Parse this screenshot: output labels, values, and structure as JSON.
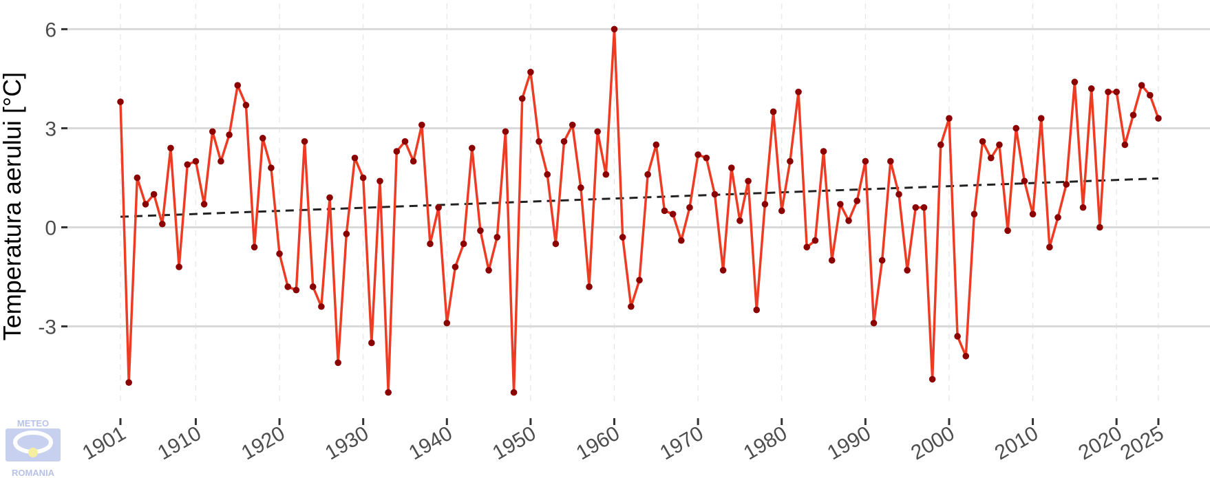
{
  "chart_data": {
    "type": "line",
    "ylabel": "Temperatura aerului [°C]",
    "xlabel": "",
    "title": "",
    "x": [
      1901,
      1902,
      1903,
      1904,
      1905,
      1906,
      1907,
      1908,
      1909,
      1910,
      1911,
      1912,
      1913,
      1914,
      1915,
      1916,
      1917,
      1918,
      1919,
      1920,
      1921,
      1922,
      1923,
      1924,
      1925,
      1926,
      1927,
      1928,
      1929,
      1930,
      1931,
      1932,
      1933,
      1934,
      1935,
      1936,
      1937,
      1938,
      1939,
      1940,
      1941,
      1942,
      1943,
      1944,
      1945,
      1946,
      1947,
      1948,
      1949,
      1950,
      1951,
      1952,
      1953,
      1954,
      1955,
      1956,
      1957,
      1958,
      1959,
      1960,
      1961,
      1962,
      1963,
      1964,
      1965,
      1966,
      1967,
      1968,
      1969,
      1970,
      1971,
      1972,
      1973,
      1974,
      1975,
      1976,
      1977,
      1978,
      1979,
      1980,
      1981,
      1982,
      1983,
      1984,
      1985,
      1986,
      1987,
      1988,
      1989,
      1990,
      1991,
      1992,
      1993,
      1994,
      1995,
      1996,
      1997,
      1998,
      1999,
      2000,
      2001,
      2002,
      2003,
      2004,
      2005,
      2006,
      2007,
      2008,
      2009,
      2010,
      2011,
      2012,
      2013,
      2014,
      2015,
      2016,
      2017,
      2018,
      2019,
      2020,
      2021,
      2022,
      2023,
      2024,
      2025
    ],
    "values": [
      3.8,
      -4.7,
      1.5,
      0.7,
      1.0,
      0.1,
      2.4,
      -1.2,
      1.9,
      2.0,
      0.7,
      2.9,
      2.0,
      2.8,
      4.3,
      3.7,
      -0.6,
      2.7,
      1.8,
      -0.8,
      -1.8,
      -1.9,
      2.6,
      -1.8,
      -2.4,
      0.9,
      -4.1,
      -0.2,
      2.1,
      1.5,
      -3.5,
      1.4,
      -5.0,
      2.3,
      2.6,
      2.0,
      3.1,
      -0.5,
      0.6,
      -2.9,
      -1.2,
      -0.5,
      2.4,
      -0.1,
      -1.3,
      -0.3,
      2.9,
      -5.0,
      3.9,
      4.7,
      2.6,
      1.6,
      -0.5,
      2.6,
      3.1,
      1.2,
      -1.8,
      2.9,
      1.6,
      6.0,
      -0.3,
      -2.4,
      -1.6,
      1.6,
      2.5,
      0.5,
      0.4,
      -0.4,
      0.6,
      2.2,
      2.1,
      1.0,
      -1.3,
      1.8,
      0.2,
      1.4,
      -2.5,
      0.7,
      3.5,
      0.5,
      2.0,
      4.1,
      -0.6,
      -0.4,
      2.3,
      -1.0,
      0.7,
      0.2,
      0.8,
      2.0,
      -2.9,
      -1.0,
      2.0,
      1.0,
      -1.3,
      0.6,
      0.6,
      -4.6,
      2.5,
      3.3,
      -3.3,
      -3.9,
      0.4,
      2.6,
      2.1,
      2.5,
      -0.1,
      3.0,
      1.4,
      0.4,
      3.3,
      -0.6,
      0.3,
      1.3,
      4.4,
      0.6,
      4.2,
      0.0,
      4.1,
      4.1,
      2.5,
      3.4,
      4.3,
      4.0,
      3.3
    ],
    "trend": {
      "start": [
        1901,
        0.32
      ],
      "end": [
        2025,
        1.48
      ]
    },
    "xticks": [
      "1901",
      "1910",
      "1920",
      "1930",
      "1940",
      "1950",
      "1960",
      "1970",
      "1980",
      "1990",
      "2000",
      "2010",
      "2020",
      "2025"
    ],
    "yticks": [
      "6",
      "3",
      "0",
      "-3"
    ],
    "ylim": [
      -5.3,
      6.3
    ],
    "xlim": [
      1901,
      2025
    ],
    "grid": true,
    "legend": "none",
    "colors": {
      "line": "#ee3b24",
      "point": "#8b0000",
      "trend": "#222222",
      "grid_major": "#d9d9d9",
      "grid_minor": "#e6e6e6"
    }
  },
  "logo": {
    "top_text": "METEO",
    "bottom_text": "ROMANIA",
    "color": "#b8c2e8"
  }
}
